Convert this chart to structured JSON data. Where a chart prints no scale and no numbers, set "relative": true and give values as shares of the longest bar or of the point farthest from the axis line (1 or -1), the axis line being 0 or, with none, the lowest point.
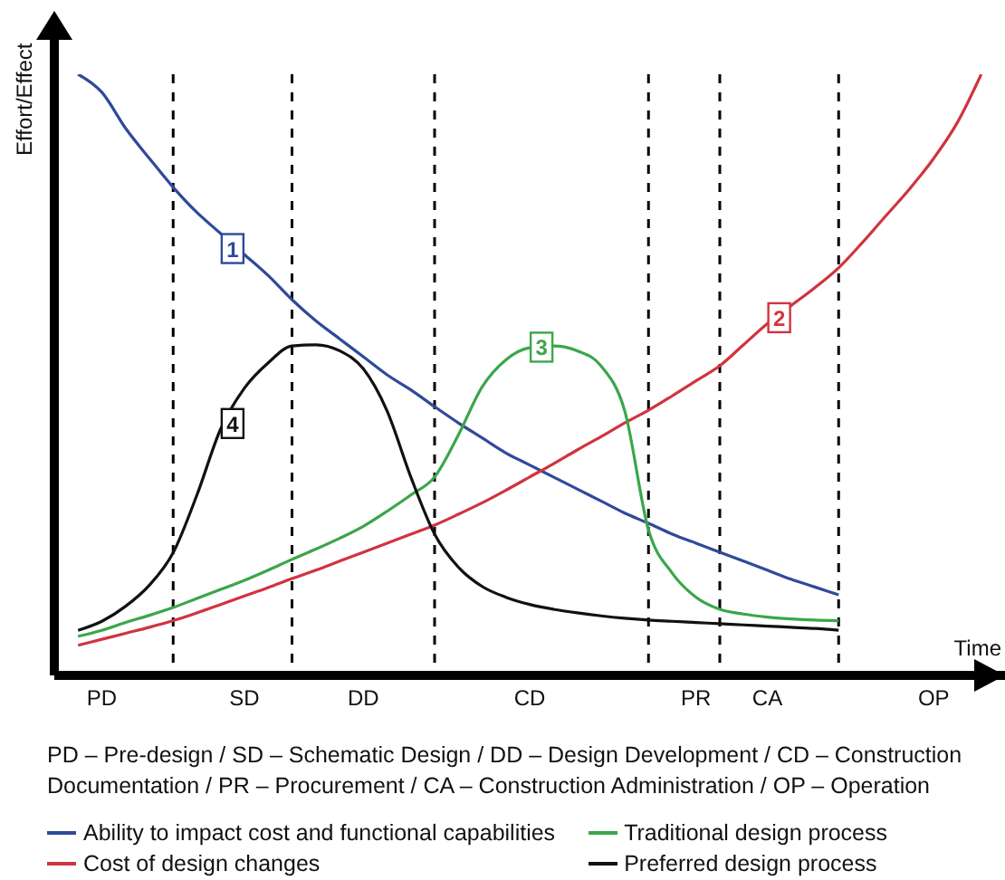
{
  "chart_data": {
    "type": "line",
    "relative": true,
    "ylabel": "Effort/Effect",
    "xlabel": "Time",
    "categories": [
      null,
      "PD",
      null,
      null,
      null,
      null,
      null,
      "SD",
      null,
      null,
      null,
      null,
      "DD",
      null,
      null,
      null,
      null,
      null,
      null,
      "CD",
      null,
      null,
      null,
      null,
      null,
      null,
      "PR",
      null,
      null,
      "CA",
      null,
      null,
      null,
      null,
      null,
      null,
      "OP",
      null,
      null
    ],
    "grid": "x",
    "series": [
      {
        "name": "Ability to impact cost and functional capabilities",
        "color": "#2f4a9a",
        "values": [
          1.0,
          0.97,
          0.91,
          0.86,
          0.812,
          0.77,
          0.735,
          0.7,
          0.665,
          0.625,
          0.59,
          0.56,
          0.53,
          0.5,
          0.475,
          0.447,
          0.42,
          0.395,
          0.37,
          0.35,
          0.33,
          0.31,
          0.29,
          0.27,
          0.253,
          0.235,
          0.22,
          0.205,
          0.19,
          0.175,
          0.16,
          0.147,
          0.134,
          null,
          null,
          null,
          null,
          null,
          null
        ]
      },
      {
        "name": "Cost of design changes",
        "color": "#d0343f",
        "values": [
          0.05,
          0.06,
          0.07,
          0.08,
          0.091,
          0.104,
          0.118,
          0.132,
          0.146,
          0.161,
          0.175,
          0.19,
          0.205,
          0.22,
          0.235,
          0.25,
          0.268,
          0.287,
          0.308,
          0.33,
          0.352,
          0.375,
          0.397,
          0.42,
          0.441,
          0.465,
          0.49,
          0.515,
          0.55,
          0.585,
          0.615,
          0.645,
          0.678,
          0.72,
          0.765,
          0.81,
          0.86,
          0.92,
          1.0
        ]
      },
      {
        "name": "Traditional design process",
        "color": "#3aa64a",
        "values": [
          0.065,
          0.075,
          0.088,
          0.1,
          0.113,
          0.128,
          0.143,
          0.158,
          0.175,
          0.193,
          0.21,
          0.228,
          0.248,
          0.273,
          0.3,
          0.33,
          0.4,
          0.48,
          0.525,
          0.545,
          0.548,
          0.54,
          0.515,
          0.44,
          0.242,
          0.17,
          0.13,
          0.11,
          0.102,
          0.097,
          0.094,
          0.092,
          0.091,
          null,
          null,
          null,
          null,
          null,
          null
        ]
      },
      {
        "name": "Preferred design process",
        "color": "#111111",
        "values": [
          0.075,
          0.09,
          0.115,
          0.15,
          0.204,
          0.3,
          0.41,
          0.478,
          0.52,
          0.548,
          0.55,
          0.54,
          0.51,
          0.44,
          0.33,
          0.235,
          0.18,
          0.148,
          0.13,
          0.118,
          0.11,
          0.104,
          0.099,
          0.095,
          0.092,
          0.09,
          0.088,
          0.086,
          0.084,
          0.082,
          0.08,
          0.078,
          0.075,
          null,
          null,
          null,
          null,
          null,
          null
        ]
      }
    ],
    "annotations": [
      {
        "text": "1",
        "y": 0.71
      },
      {
        "text": "2",
        "y": 0.595
      },
      {
        "text": "3",
        "y": 0.546
      },
      {
        "text": "4",
        "y": 0.419
      },
      "PD – Pre-design / SD – Schematic Design / DD – Design Development / CD – Construction Documentation / PR – Procurement / CA – Construction Administration / OP – Operation"
    ],
    "legend": "bottom"
  }
}
